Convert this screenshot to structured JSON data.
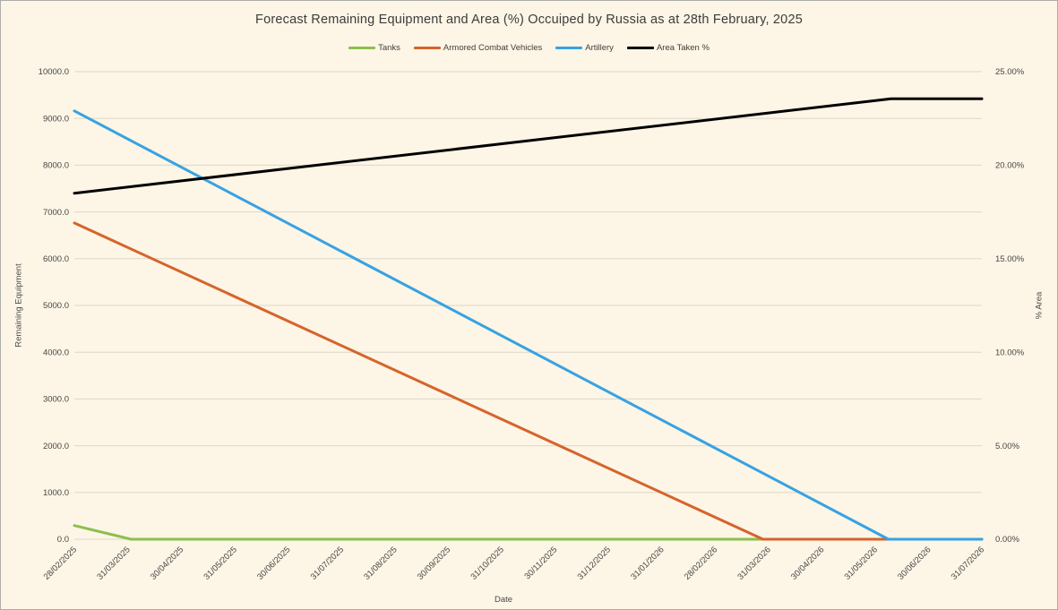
{
  "window": {
    "background_color": "#FDF5E5",
    "gridline_color": "#DBD8CC"
  },
  "chart_data": {
    "type": "line",
    "title": "Forecast Remaining Equipment and Area (%) Occuiped by Russia as at 28th February, 2025",
    "xlabel": "Date",
    "ylabel_left": "Remaining Equipment",
    "ylabel_right": "% Area",
    "legend_position": "top-center",
    "grid": true,
    "x_tick_labels": [
      "28/02/2025",
      "31/03/2025",
      "30/04/2025",
      "31/05/2025",
      "30/06/2025",
      "31/07/2025",
      "31/08/2025",
      "30/09/2025",
      "31/10/2025",
      "30/11/2025",
      "31/12/2025",
      "31/01/2026",
      "28/02/2026",
      "31/03/2026",
      "30/04/2026",
      "31/05/2026",
      "30/06/2026",
      "31/07/2026"
    ],
    "left_axis": {
      "min": 0,
      "max": 10000,
      "step": 1000,
      "tick_labels": [
        "0.0",
        "1000.0",
        "2000.0",
        "3000.0",
        "4000.0",
        "5000.0",
        "6000.0",
        "7000.0",
        "8000.0",
        "9000.0",
        "10000.0"
      ]
    },
    "right_axis": {
      "min": 0,
      "max": 25,
      "label_step": 5,
      "tick_labels": [
        "0.00%",
        "5.00%",
        "10.00%",
        "15.00%",
        "20.00%",
        "25.00%"
      ]
    },
    "series": [
      {
        "name": "Tanks",
        "color": "#8CBF4F",
        "axis": "left",
        "breakpoints": [
          [
            0,
            293
          ],
          [
            1.06,
            0
          ],
          [
            17,
            0
          ]
        ],
        "values": [
          293,
          17,
          0,
          0,
          0,
          0,
          0,
          0,
          0,
          0,
          0,
          0,
          0,
          0,
          0,
          0,
          0,
          0
        ]
      },
      {
        "name": "Armored Combat Vehicles",
        "color": "#D5642C",
        "axis": "left",
        "breakpoints": [
          [
            0,
            6765
          ],
          [
            12.9,
            0
          ],
          [
            17,
            0
          ]
        ],
        "values": [
          6765,
          6241,
          5716,
          5192,
          4667,
          4143,
          3618,
          3094,
          2569,
          2045,
          1521,
          996,
          472,
          0,
          0,
          0,
          0,
          0
        ]
      },
      {
        "name": "Artillery",
        "color": "#36A2E4",
        "axis": "left",
        "breakpoints": [
          [
            0,
            9160
          ],
          [
            15.25,
            0
          ],
          [
            17,
            0
          ]
        ],
        "values": [
          9160,
          8559,
          7959,
          7358,
          6757,
          6157,
          5556,
          4955,
          4355,
          3754,
          3153,
          2553,
          1952,
          1351,
          751,
          150,
          0,
          0
        ]
      },
      {
        "name": "Area Taken %",
        "color": "#000000",
        "axis": "right",
        "breakpoints": [
          [
            0,
            18.5
          ],
          [
            15.3,
            23.55
          ],
          [
            17,
            23.55
          ]
        ],
        "values": [
          18.5,
          18.83,
          19.16,
          19.49,
          19.82,
          20.15,
          20.48,
          20.81,
          21.14,
          21.47,
          21.8,
          22.13,
          22.46,
          22.79,
          23.12,
          23.45,
          23.55,
          23.55
        ]
      }
    ]
  }
}
